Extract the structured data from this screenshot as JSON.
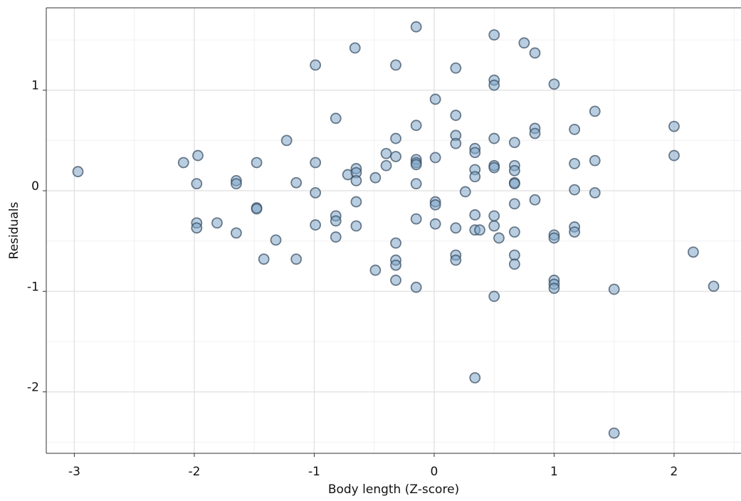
{
  "chart_data": {
    "type": "scatter",
    "xlabel": "Body length (Z-score)",
    "ylabel": "Residuals",
    "xlim": [
      -3.234,
      2.558
    ],
    "ylim": [
      -2.611,
      1.819
    ],
    "xticks": [
      -3,
      -2,
      -1,
      0,
      1,
      2
    ],
    "yticks": [
      -2,
      -1,
      0,
      1
    ],
    "xminorticks": [
      -2.5,
      -1.5,
      -0.5,
      0.5,
      1.5,
      2.5
    ],
    "yminorticks": [
      -2.5,
      -1.5,
      -0.5,
      0.5,
      1.5
    ],
    "grid": true,
    "color": "#7fa6c9",
    "edgecolor": "#34495c",
    "x": [
      -2.97,
      -2.09,
      -1.97,
      -1.98,
      -1.98,
      -1.98,
      -1.81,
      -1.65,
      -1.65,
      -1.65,
      -1.48,
      -1.48,
      -1.48,
      -1.32,
      -1.42,
      -1.23,
      -1.15,
      -1.15,
      -0.99,
      -0.99,
      -0.99,
      -0.99,
      -0.82,
      -0.82,
      -0.82,
      -0.82,
      -0.72,
      -0.66,
      -0.65,
      -0.65,
      -0.65,
      -0.65,
      -0.65,
      -0.49,
      -0.49,
      -0.4,
      -0.4,
      -0.32,
      -0.32,
      -0.32,
      -0.32,
      -0.32,
      -0.32,
      -0.32,
      -0.15,
      -0.15,
      -0.15,
      -0.15,
      -0.15,
      -0.15,
      -0.15,
      -0.15,
      0.01,
      0.01,
      0.01,
      0.01,
      0.01,
      0.18,
      0.18,
      0.18,
      0.18,
      0.18,
      0.18,
      0.18,
      0.26,
      0.34,
      0.34,
      0.34,
      0.34,
      0.34,
      0.34,
      0.34,
      0.38,
      0.5,
      0.5,
      0.5,
      0.5,
      0.5,
      0.5,
      0.5,
      0.5,
      0.5,
      0.54,
      0.67,
      0.67,
      0.67,
      0.67,
      0.67,
      0.67,
      0.67,
      0.67,
      0.67,
      0.75,
      0.84,
      0.84,
      0.84,
      0.84,
      1.0,
      1.0,
      1.0,
      1.0,
      1.0,
      1.0,
      1.17,
      1.17,
      1.17,
      1.17,
      1.17,
      1.34,
      1.34,
      1.34,
      1.5,
      1.5,
      2.0,
      2.0,
      2.16,
      2.33
    ],
    "values": [
      0.19,
      0.28,
      0.35,
      0.07,
      -0.32,
      -0.37,
      -0.32,
      0.1,
      0.07,
      -0.42,
      0.28,
      -0.17,
      -0.18,
      -0.49,
      -0.68,
      0.5,
      0.08,
      -0.68,
      1.25,
      0.28,
      -0.02,
      -0.34,
      0.72,
      -0.25,
      -0.3,
      -0.46,
      0.16,
      1.42,
      0.22,
      0.18,
      0.1,
      -0.11,
      -0.35,
      -0.79,
      0.13,
      0.37,
      0.25,
      1.25,
      0.52,
      0.34,
      -0.52,
      -0.69,
      -0.74,
      -0.89,
      1.63,
      0.65,
      0.31,
      0.28,
      0.26,
      0.07,
      -0.28,
      -0.96,
      0.91,
      0.33,
      -0.11,
      -0.14,
      -0.33,
      1.22,
      0.75,
      0.55,
      0.47,
      -0.37,
      -0.64,
      -0.69,
      -0.01,
      0.42,
      0.38,
      0.21,
      0.14,
      -0.24,
      -0.39,
      -1.86,
      -0.39,
      1.55,
      1.1,
      1.05,
      0.52,
      0.25,
      0.23,
      -0.25,
      -0.35,
      -1.05,
      -0.47,
      0.48,
      0.25,
      0.2,
      0.08,
      0.07,
      -0.13,
      -0.41,
      -0.64,
      -0.73,
      1.47,
      1.37,
      0.62,
      0.57,
      -0.09,
      1.06,
      -0.44,
      -0.47,
      -0.89,
      -0.93,
      -0.97,
      0.61,
      0.27,
      0.01,
      -0.36,
      -0.41,
      0.79,
      0.3,
      -0.02,
      -0.98,
      -2.41,
      0.64,
      0.35,
      -0.61,
      -0.95
    ]
  }
}
